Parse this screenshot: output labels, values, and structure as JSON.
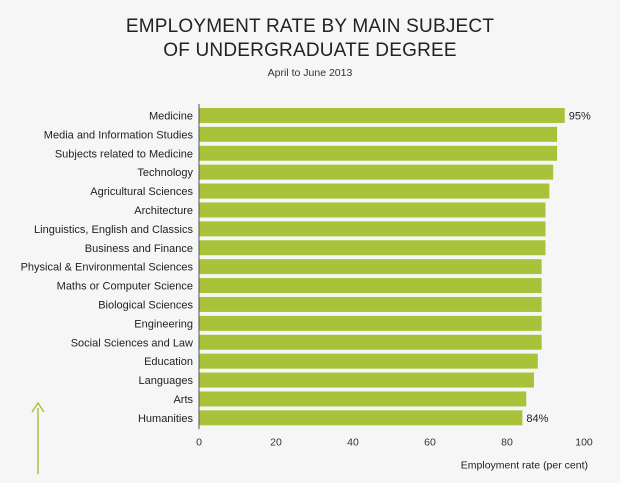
{
  "chart_data": {
    "type": "bar",
    "orientation": "horizontal",
    "title": "EMPLOYMENT RATE BY MAIN SUBJECT OF UNDERGRADUATE DEGREE",
    "title_lines": [
      "EMPLOYMENT RATE BY MAIN SUBJECT",
      "OF UNDERGRADUATE DEGREE"
    ],
    "subtitle": "April to June 2013",
    "xlabel": "Employment rate (per cent)",
    "xlim": [
      0,
      100
    ],
    "xticks": [
      0,
      20,
      40,
      60,
      80,
      100
    ],
    "grid": false,
    "bar_color": "#a8c33a",
    "categories": [
      "Medicine",
      "Media and Information Studies",
      "Subjects related to Medicine",
      "Technology",
      "Agricultural Sciences",
      "Architecture",
      "Linguistics, English and Classics",
      "Business and Finance",
      "Physical & Environmental Sciences",
      "Maths or Computer Science",
      "Biological Sciences",
      "Engineering",
      "Social Sciences and Law",
      "Education",
      "Languages",
      "Arts",
      "Humanities"
    ],
    "values": [
      95,
      93,
      93,
      92,
      91,
      90,
      90,
      90,
      89,
      89,
      89,
      89,
      89,
      88,
      87,
      85,
      84
    ],
    "data_labels": [
      {
        "index": 0,
        "text": "95%"
      },
      {
        "index": 16,
        "text": "84%"
      }
    ]
  }
}
